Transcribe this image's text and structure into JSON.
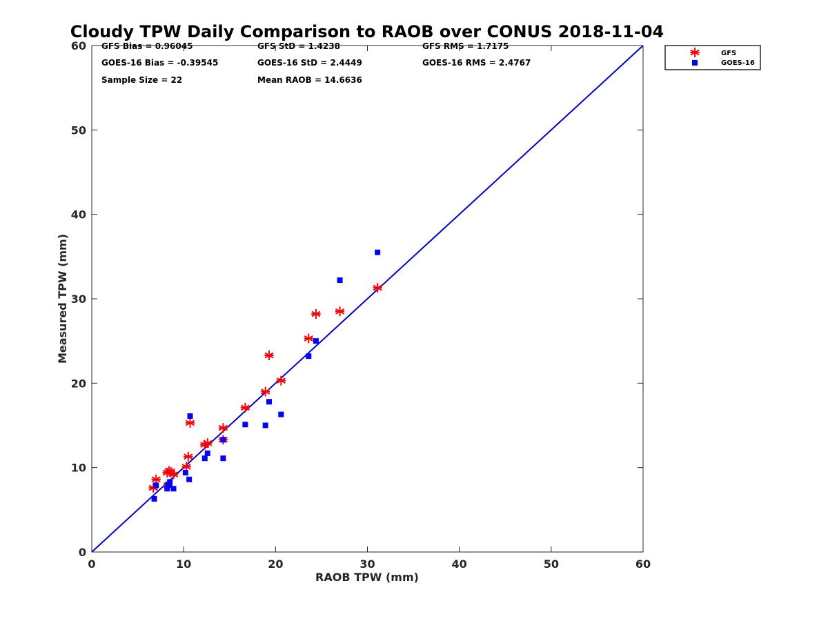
{
  "chart_data": {
    "type": "scatter",
    "title": "Cloudy TPW Daily Comparison to RAOB over CONUS 2018-11-04",
    "xlabel": "RAOB TPW (mm)",
    "ylabel": "Measured TPW (mm)",
    "xlim": [
      0,
      60
    ],
    "ylim": [
      0,
      60
    ],
    "xticks": [
      "0",
      "10",
      "20",
      "30",
      "40",
      "50",
      "60"
    ],
    "yticks": [
      "0",
      "10",
      "20",
      "30",
      "40",
      "50",
      "60"
    ],
    "grid": false,
    "legend_position": "top-right",
    "stats": [
      [
        "GFS Bias = 0.96045",
        "GFS StD = 1.4238",
        "GFS RMS = 1.7175"
      ],
      [
        "GOES-16 Bias = -0.39545",
        "GOES-16 StD = 2.4449",
        "GOES-16 RMS = 2.4767"
      ],
      [
        "Sample Size = 22",
        "Mean RAOB = 14.6636",
        ""
      ]
    ],
    "reference_line": {
      "from": [
        0,
        0
      ],
      "to": [
        60,
        60
      ],
      "color": "#0000cc"
    },
    "series": [
      {
        "name": "GFS",
        "marker": "asterisk",
        "color": "#ff0000",
        "points": [
          [
            6.7,
            7.6
          ],
          [
            7.0,
            8.6
          ],
          [
            8.3,
            7.9
          ],
          [
            8.4,
            9.6
          ],
          [
            8.6,
            9.5
          ],
          [
            8.9,
            9.2
          ],
          [
            10.3,
            10.1
          ],
          [
            10.5,
            11.3
          ],
          [
            10.7,
            15.3
          ],
          [
            12.3,
            12.7
          ],
          [
            12.6,
            12.9
          ],
          [
            14.3,
            14.7
          ],
          [
            14.3,
            13.3
          ],
          [
            16.7,
            17.1
          ],
          [
            18.9,
            19.0
          ],
          [
            19.3,
            23.3
          ],
          [
            20.6,
            20.3
          ],
          [
            23.6,
            25.3
          ],
          [
            24.4,
            28.2
          ],
          [
            27.0,
            28.5
          ],
          [
            31.1,
            31.3
          ],
          [
            8.2,
            9.4
          ]
        ]
      },
      {
        "name": "GOES-16",
        "marker": "square",
        "color": "#0000ff",
        "points": [
          [
            6.8,
            6.3
          ],
          [
            7.0,
            7.9
          ],
          [
            8.2,
            7.5
          ],
          [
            8.4,
            7.9
          ],
          [
            8.5,
            8.3
          ],
          [
            8.9,
            7.5
          ],
          [
            10.2,
            9.4
          ],
          [
            10.6,
            8.6
          ],
          [
            10.7,
            16.1
          ],
          [
            12.3,
            11.1
          ],
          [
            12.6,
            11.7
          ],
          [
            14.3,
            13.3
          ],
          [
            14.3,
            11.1
          ],
          [
            16.7,
            15.1
          ],
          [
            18.9,
            15.0
          ],
          [
            19.3,
            17.8
          ],
          [
            20.6,
            16.3
          ],
          [
            23.6,
            23.2
          ],
          [
            24.4,
            25.0
          ],
          [
            27.0,
            32.2
          ],
          [
            31.1,
            35.5
          ],
          [
            8.3,
            8.0
          ]
        ]
      }
    ]
  }
}
